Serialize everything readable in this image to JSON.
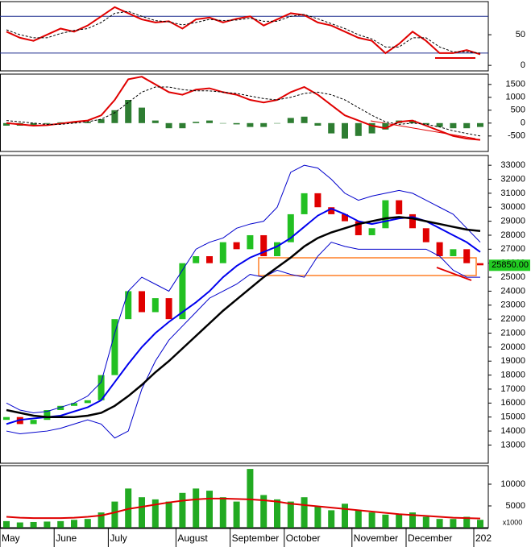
{
  "chart_data": [
    {
      "type": "line",
      "ylim": [
        -9,
        104
      ],
      "yticks": [
        0,
        50
      ],
      "levels": [
        20,
        80
      ],
      "level_color": "#1f2f8f",
      "series": [
        {
          "color": "#e00000",
          "values": [
            55,
            45,
            40,
            50,
            60,
            55,
            65,
            80,
            95,
            85,
            75,
            70,
            72,
            60,
            75,
            78,
            70,
            76,
            80,
            65,
            75,
            85,
            82,
            70,
            65,
            55,
            45,
            40,
            20,
            35,
            55,
            40,
            20,
            20,
            25,
            18
          ]
        },
        {
          "color": "#000000",
          "dashed": true,
          "values": [
            58,
            50,
            45,
            45,
            52,
            57,
            60,
            70,
            85,
            88,
            80,
            73,
            71,
            66,
            70,
            75,
            73,
            74,
            77,
            72,
            72,
            80,
            83,
            76,
            68,
            60,
            50,
            43,
            30,
            30,
            45,
            45,
            30,
            22,
            22,
            20
          ]
        }
      ]
    },
    {
      "type": "line",
      "ylim": [
        -1100,
        1900
      ],
      "yticks": [
        -500,
        0,
        500,
        1000,
        1500
      ],
      "histogram": {
        "color": "#2e7d32",
        "values": [
          -100,
          -100,
          -100,
          -30,
          30,
          50,
          50,
          150,
          500,
          900,
          600,
          100,
          -200,
          -200,
          50,
          100,
          0,
          -50,
          -150,
          -150,
          0,
          200,
          250,
          -100,
          -400,
          -600,
          -500,
          -400,
          -250,
          100,
          100,
          -50,
          -150,
          -200,
          -200,
          -150
        ]
      },
      "series": [
        {
          "color": "#e00000",
          "values": [
            0,
            -50,
            -100,
            -80,
            -20,
            50,
            100,
            300,
            900,
            1700,
            1800,
            1500,
            1200,
            1100,
            1300,
            1350,
            1200,
            1100,
            900,
            800,
            900,
            1200,
            1400,
            1100,
            700,
            300,
            100,
            -100,
            -200,
            50,
            100,
            -100,
            -300,
            -500,
            -600,
            -650
          ]
        },
        {
          "color": "#000000",
          "dashed": true,
          "values": [
            100,
            50,
            0,
            -50,
            -50,
            0,
            50,
            150,
            400,
            800,
            1200,
            1400,
            1400,
            1300,
            1250,
            1250,
            1200,
            1150,
            1050,
            950,
            900,
            1000,
            1150,
            1200,
            1100,
            900,
            600,
            300,
            50,
            -50,
            0,
            -50,
            -150,
            -300,
            -400,
            -500
          ]
        }
      ]
    },
    {
      "type": "candlestick",
      "ylim": [
        11700,
        33700
      ],
      "yticks": [
        13000,
        14000,
        15000,
        16000,
        17000,
        18000,
        19000,
        20000,
        21000,
        22000,
        23000,
        24000,
        25000,
        26000,
        27000,
        28000,
        29000,
        30000,
        31000,
        32000,
        33000
      ],
      "up_color": "#22c022",
      "down_color": "#e00000",
      "last_label": "25850.00",
      "last_label_color": "#22cc22",
      "open": [
        14800,
        15000,
        14500,
        14800,
        15500,
        15800,
        16000,
        16200,
        18000,
        22000,
        24000,
        22500,
        23500,
        22000,
        26000,
        26500,
        26000,
        27500,
        27000,
        28000,
        26500,
        27500,
        29500,
        31000,
        30000,
        29500,
        29000,
        28000,
        28500,
        30500,
        29500,
        28500,
        27500,
        26500,
        27000,
        26000
      ],
      "close": [
        15000,
        14500,
        14800,
        15500,
        15800,
        16000,
        16200,
        18000,
        22000,
        24000,
        22500,
        23500,
        22000,
        26000,
        26500,
        26000,
        27500,
        27000,
        28000,
        26500,
        27500,
        29500,
        31000,
        30000,
        29500,
        29000,
        28000,
        28500,
        30500,
        29500,
        28500,
        27500,
        26500,
        27000,
        26000,
        25850
      ],
      "series": [
        {
          "color": "#0000cc",
          "width": 1,
          "values": [
            16000,
            15500,
            15300,
            15400,
            15700,
            16000,
            16500,
            17500,
            21000,
            24000,
            25000,
            24500,
            24000,
            25500,
            27000,
            27500,
            27800,
            28500,
            28800,
            29000,
            30000,
            32500,
            33000,
            32800,
            32000,
            31000,
            30500,
            30800,
            31000,
            31200,
            31000,
            30500,
            30000,
            29500,
            28500,
            27500
          ]
        },
        {
          "color": "#0000cc",
          "width": 1,
          "values": [
            14000,
            13800,
            13900,
            14000,
            14200,
            14500,
            14800,
            14500,
            13500,
            14000,
            17000,
            19000,
            20500,
            21500,
            22500,
            23500,
            24000,
            24500,
            25200,
            25000,
            25500,
            25200,
            25000,
            26500,
            27500,
            27200,
            27000,
            27000,
            27000,
            27000,
            27000,
            27000,
            26500,
            25500,
            25000,
            25000
          ]
        },
        {
          "color": "#0000ee",
          "width": 2,
          "values": [
            14500,
            14800,
            14900,
            15000,
            15100,
            15400,
            15700,
            16200,
            17500,
            18800,
            20000,
            21000,
            21800,
            22500,
            23200,
            24000,
            25000,
            25800,
            26400,
            26800,
            27200,
            27800,
            28600,
            29400,
            29900,
            29500,
            29000,
            28800,
            29000,
            29200,
            29300,
            29000,
            28500,
            28000,
            27500,
            26800
          ]
        },
        {
          "color": "#000000",
          "width": 2.5,
          "values": [
            15500,
            15300,
            15100,
            15000,
            15000,
            15000,
            15100,
            15300,
            15800,
            16500,
            17300,
            18200,
            19000,
            19900,
            20800,
            21700,
            22600,
            23400,
            24200,
            25000,
            25700,
            26400,
            27200,
            27800,
            28200,
            28500,
            28800,
            29000,
            29200,
            29300,
            29200,
            29000,
            28800,
            28600,
            28400,
            28300
          ]
        }
      ]
    },
    {
      "type": "bar",
      "ylim": [
        0,
        14260
      ],
      "yticks": [
        5000,
        10000
      ],
      "unit_label": "x1000",
      "color": "#22aa22",
      "categories": [
        "May",
        null,
        null,
        null,
        "June",
        null,
        null,
        null,
        "July",
        null,
        null,
        null,
        null,
        "August",
        null,
        null,
        null,
        "September",
        null,
        null,
        null,
        "October",
        null,
        null,
        null,
        null,
        "November",
        null,
        null,
        null,
        "December",
        null,
        null,
        null,
        null,
        "202"
      ],
      "values": [
        1500,
        1200,
        1300,
        1400,
        1500,
        1800,
        2000,
        3500,
        6000,
        9000,
        7000,
        6500,
        6000,
        8000,
        9000,
        8500,
        7000,
        6000,
        13500,
        7500,
        6500,
        6000,
        7000,
        5000,
        4000,
        5500,
        4000,
        3500,
        3000,
        3000,
        3500,
        2500,
        2000,
        2000,
        2500,
        1800
      ],
      "series": [
        {
          "color": "#e00000",
          "width": 2,
          "values": [
            2500,
            2300,
            2200,
            2200,
            2200,
            2300,
            2500,
            2800,
            3500,
            4300,
            4800,
            5300,
            5800,
            6200,
            6500,
            6700,
            6700,
            6600,
            6500,
            6300,
            6000,
            5500,
            5200,
            4900,
            4600,
            4300,
            4000,
            3700,
            3400,
            3100,
            2900,
            2700,
            2500,
            2300,
            2200,
            2100
          ]
        }
      ]
    }
  ]
}
